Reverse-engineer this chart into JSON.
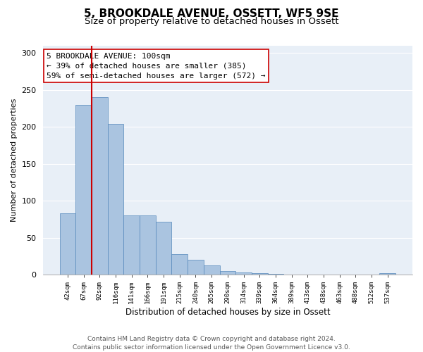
{
  "title": "5, BROOKDALE AVENUE, OSSETT, WF5 9SE",
  "subtitle": "Size of property relative to detached houses in Ossett",
  "xlabel": "Distribution of detached houses by size in Ossett",
  "ylabel": "Number of detached properties",
  "bar_labels": [
    "42sqm",
    "67sqm",
    "92sqm",
    "116sqm",
    "141sqm",
    "166sqm",
    "191sqm",
    "215sqm",
    "240sqm",
    "265sqm",
    "290sqm",
    "314sqm",
    "339sqm",
    "364sqm",
    "389sqm",
    "413sqm",
    "438sqm",
    "463sqm",
    "488sqm",
    "512sqm",
    "537sqm"
  ],
  "bar_heights": [
    83,
    230,
    240,
    204,
    80,
    80,
    72,
    28,
    20,
    13,
    5,
    3,
    2,
    1,
    0,
    0,
    0,
    0,
    0,
    0,
    2
  ],
  "bar_color": "#aac4e0",
  "bar_edge_color": "#5588bb",
  "vline_color": "#cc0000",
  "vline_x_index": 2,
  "box_edge_color": "#cc0000",
  "ylim": [
    0,
    310
  ],
  "yticks": [
    0,
    50,
    100,
    150,
    200,
    250,
    300
  ],
  "bg_color": "#e8eff7",
  "footer_line1": "Contains HM Land Registry data © Crown copyright and database right 2024.",
  "footer_line2": "Contains public sector information licensed under the Open Government Licence v3.0.",
  "title_fontsize": 11,
  "subtitle_fontsize": 9.5,
  "annotation_fontsize": 8,
  "footer_fontsize": 6.5,
  "ylabel_fontsize": 8,
  "xlabel_fontsize": 8.5,
  "ytick_fontsize": 8,
  "xtick_fontsize": 6.5
}
